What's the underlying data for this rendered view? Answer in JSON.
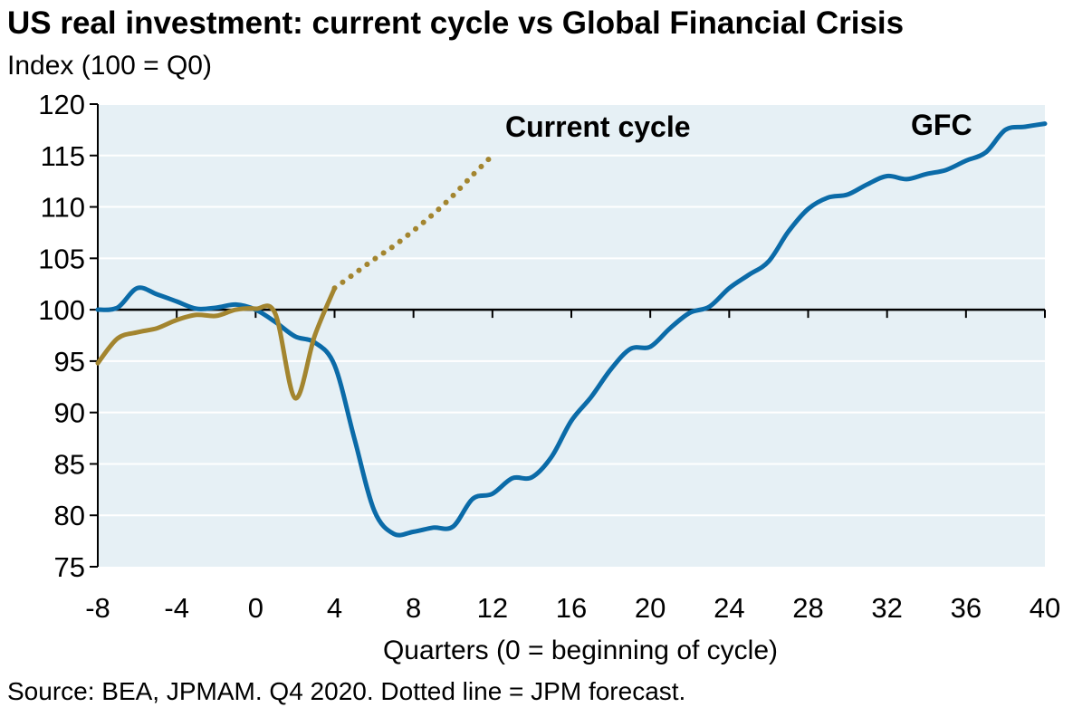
{
  "chart_data": {
    "type": "line",
    "title": "US real investment: current cycle vs Global Financial Crisis",
    "subtitle": "Index (100 = Q0)",
    "xlabel": "Quarters (0 = beginning of cycle)",
    "ylabel": "",
    "source": "Source: BEA, JPMAM. Q4 2020. Dotted line = JPM forecast.",
    "xlim": [
      -8,
      40
    ],
    "ylim": [
      75,
      120
    ],
    "xticks": [
      -8,
      -4,
      0,
      4,
      8,
      12,
      16,
      20,
      24,
      28,
      32,
      36,
      40
    ],
    "yticks": [
      75,
      80,
      85,
      90,
      95,
      100,
      105,
      110,
      115,
      120
    ],
    "grid": true,
    "reference_line": 100,
    "colors": {
      "gfc": "#0B6BA8",
      "current": "#A3852F",
      "plot_bg": "#E6F0F5",
      "grid": "#FFFFFF"
    },
    "series": [
      {
        "name": "GFC",
        "style": "solid",
        "x": [
          -8,
          -7,
          -6,
          -5,
          -4,
          -3,
          -2,
          -1,
          0,
          1,
          2,
          3,
          4,
          5,
          6,
          7,
          8,
          9,
          10,
          11,
          12,
          13,
          14,
          15,
          16,
          17,
          18,
          19,
          20,
          21,
          22,
          23,
          24,
          25,
          26,
          27,
          28,
          29,
          30,
          31,
          32,
          33,
          34,
          35,
          36,
          37,
          38,
          39,
          40
        ],
        "y": [
          100,
          100.2,
          102.1,
          101.5,
          100.8,
          100.1,
          100.2,
          100.5,
          100,
          98.8,
          97.4,
          96.8,
          94.6,
          87.5,
          80.5,
          78.2,
          78.4,
          78.8,
          78.9,
          81.6,
          82.1,
          83.6,
          83.7,
          85.7,
          89.2,
          91.5,
          94.2,
          96.2,
          96.4,
          98.2,
          99.7,
          100.3,
          102.1,
          103.4,
          104.7,
          107.6,
          109.8,
          110.9,
          111.2,
          112.2,
          113,
          112.7,
          113.2,
          113.6,
          114.5,
          115.3,
          117.5,
          117.8,
          118.1
        ]
      },
      {
        "name": "Current cycle",
        "style": "solid",
        "x": [
          -8,
          -7,
          -6,
          -5,
          -4,
          -3,
          -2,
          -1,
          0,
          1,
          2,
          3,
          4
        ],
        "y": [
          94.8,
          97.2,
          97.8,
          98.2,
          99,
          99.5,
          99.4,
          100,
          100.1,
          99.6,
          91.4,
          97.5,
          102.1
        ]
      },
      {
        "name": "Current cycle forecast",
        "style": "dotted",
        "x": [
          4,
          5,
          6,
          7,
          8,
          9,
          10,
          11,
          12
        ],
        "y": [
          102.1,
          103.5,
          104.9,
          106.2,
          107.7,
          109.3,
          111.1,
          113.1,
          115
        ]
      }
    ],
    "labels": {
      "current": "Current cycle",
      "gfc": "GFC"
    }
  }
}
